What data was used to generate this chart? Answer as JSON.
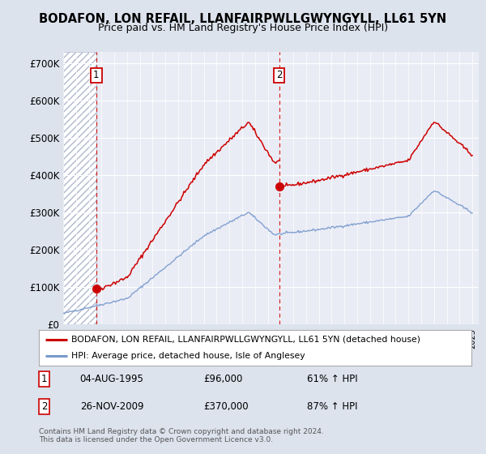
{
  "title1": "BODAFON, LON REFAIL, LLANFAIRPWLLGWYNGYLL, LL61 5YN",
  "title2": "Price paid vs. HM Land Registry's House Price Index (HPI)",
  "ylabel_ticks": [
    "£0",
    "£100K",
    "£200K",
    "£300K",
    "£400K",
    "£500K",
    "£600K",
    "£700K"
  ],
  "ylabel_values": [
    0,
    100000,
    200000,
    300000,
    400000,
    500000,
    600000,
    700000
  ],
  "ylim": [
    0,
    730000
  ],
  "xlim_start": 1993.0,
  "xlim_end": 2025.5,
  "sale1_x": 1995.585,
  "sale1_y": 96000,
  "sale2_x": 2009.9,
  "sale2_y": 370000,
  "legend_line1": "BODAFON, LON REFAIL, LLANFAIRPWLLGWYNGYLL, LL61 5YN (detached house)",
  "legend_line2": "HPI: Average price, detached house, Isle of Anglesey",
  "annotation1_label": "1",
  "annotation1_date": "04-AUG-1995",
  "annotation1_price": "£96,000",
  "annotation1_hpi": "61% ↑ HPI",
  "annotation2_label": "2",
  "annotation2_date": "26-NOV-2009",
  "annotation2_price": "£370,000",
  "annotation2_hpi": "87% ↑ HPI",
  "footer": "Contains HM Land Registry data © Crown copyright and database right 2024.\nThis data is licensed under the Open Government Licence v3.0.",
  "bg_color": "#dce3ed",
  "plot_bg": "#eaecf5",
  "grid_color": "#ffffff",
  "red_line_color": "#cc0000",
  "blue_line_color": "#7799cc",
  "sale_dot_color": "#cc0000",
  "hatch_edgecolor": "#b0b8cc"
}
